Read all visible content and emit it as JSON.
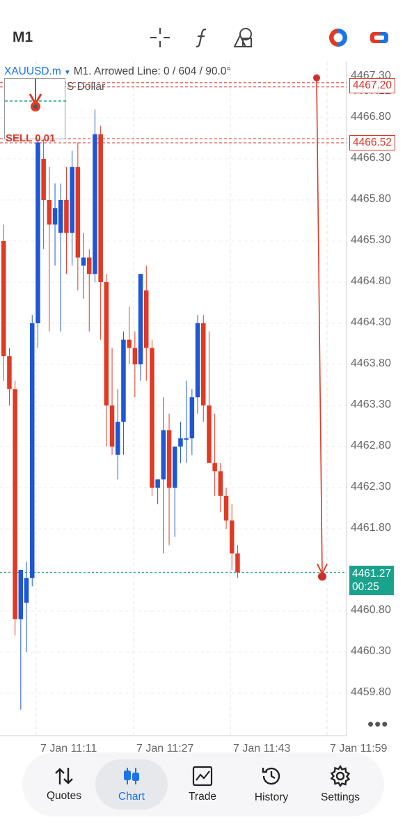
{
  "toolbar": {
    "timeframe": "M1",
    "icons": [
      "crosshair-icon",
      "function-icon",
      "objects-icon",
      "one-click-trading-icon",
      "trade-toggle-icon"
    ]
  },
  "chart_header": {
    "symbol": "XAUUSD.m",
    "info": "M1. Arrowed Line: 0 / 604 / 90.0°",
    "sub": "S Dollar"
  },
  "price_badges": {
    "sell_1": "4467.20",
    "sell_2": "4466.52",
    "current_price": "4461.27",
    "countdown": "00:25"
  },
  "sell_labels": [
    "SELL 0.01",
    "SELL 0.01"
  ],
  "chart_data": {
    "type": "candlestick",
    "y_ticks": [
      "4467.30",
      "4467.12",
      "4466.80",
      "4466.30",
      "4465.80",
      "4465.30",
      "4464.80",
      "4464.30",
      "4463.80",
      "4463.30",
      "4462.80",
      "4462.30",
      "4461.80",
      "4460.80",
      "4460.30",
      "4459.80"
    ],
    "x_ticks": [
      "7 Jan 11:11",
      "7 Jan 11:27",
      "7 Jan 11:43",
      "7 Jan 11:59"
    ],
    "current_price": 4461.27,
    "sell_levels": [
      4467.2,
      4466.52
    ],
    "candles": [
      {
        "o": 4465.3,
        "h": 4465.5,
        "l": 4463.6,
        "c": 4463.9
      },
      {
        "o": 4463.9,
        "h": 4464.0,
        "l": 4463.3,
        "c": 4463.5
      },
      {
        "o": 4463.5,
        "h": 4463.6,
        "l": 4460.5,
        "c": 4460.7
      },
      {
        "o": 4460.7,
        "h": 4461.3,
        "l": 4459.6,
        "c": 4461.3
      },
      {
        "o": 4460.9,
        "h": 4461.4,
        "l": 4460.3,
        "c": 4461.2
      },
      {
        "o": 4461.2,
        "h": 4464.4,
        "l": 4461.1,
        "c": 4464.3
      },
      {
        "o": 4464.3,
        "h": 4466.7,
        "l": 4464.0,
        "c": 4466.5
      },
      {
        "o": 4466.3,
        "h": 4466.9,
        "l": 4465.2,
        "c": 4465.8
      },
      {
        "o": 4465.8,
        "h": 4466.2,
        "l": 4464.2,
        "c": 4465.5
      },
      {
        "o": 4465.5,
        "h": 4466.0,
        "l": 4465.0,
        "c": 4465.7
      },
      {
        "o": 4465.4,
        "h": 4466.0,
        "l": 4464.2,
        "c": 4465.8
      },
      {
        "o": 4465.8,
        "h": 4466.2,
        "l": 4464.9,
        "c": 4465.4
      },
      {
        "o": 4465.4,
        "h": 4466.4,
        "l": 4465.0,
        "c": 4466.2
      },
      {
        "o": 4466.2,
        "h": 4466.5,
        "l": 4464.7,
        "c": 4465.1
      },
      {
        "o": 4465.0,
        "h": 4465.4,
        "l": 4464.6,
        "c": 4465.1
      },
      {
        "o": 4465.1,
        "h": 4465.2,
        "l": 4464.2,
        "c": 4464.9
      },
      {
        "o": 4464.9,
        "h": 4466.9,
        "l": 4464.8,
        "c": 4466.6
      },
      {
        "o": 4466.6,
        "h": 4466.7,
        "l": 4464.1,
        "c": 4464.8
      },
      {
        "o": 4464.8,
        "h": 4464.9,
        "l": 4462.8,
        "c": 4463.3
      },
      {
        "o": 4463.3,
        "h": 4464.0,
        "l": 4462.7,
        "c": 4462.8
      },
      {
        "o": 4462.7,
        "h": 4463.5,
        "l": 4462.4,
        "c": 4463.1
      },
      {
        "o": 4463.1,
        "h": 4464.2,
        "l": 4462.7,
        "c": 4464.1
      },
      {
        "o": 4464.1,
        "h": 4464.5,
        "l": 4463.8,
        "c": 4464.0
      },
      {
        "o": 4464.0,
        "h": 4464.2,
        "l": 4463.4,
        "c": 4463.8
      },
      {
        "o": 4463.8,
        "h": 4464.9,
        "l": 4463.6,
        "c": 4464.9
      },
      {
        "o": 4464.7,
        "h": 4465.0,
        "l": 4463.6,
        "c": 4464.0
      },
      {
        "o": 4464.0,
        "h": 4464.1,
        "l": 4462.2,
        "c": 4462.3
      },
      {
        "o": 4462.3,
        "h": 4462.4,
        "l": 4462.1,
        "c": 4462.4
      },
      {
        "o": 4462.4,
        "h": 4463.4,
        "l": 4461.5,
        "c": 4463.0
      },
      {
        "o": 4463.0,
        "h": 4463.2,
        "l": 4461.6,
        "c": 4462.3
      },
      {
        "o": 4462.3,
        "h": 4462.8,
        "l": 4461.7,
        "c": 4462.8
      },
      {
        "o": 4462.8,
        "h": 4463.1,
        "l": 4462.6,
        "c": 4462.9
      },
      {
        "o": 4462.9,
        "h": 4463.6,
        "l": 4462.6,
        "c": 4462.9
      },
      {
        "o": 4462.9,
        "h": 4463.5,
        "l": 4462.7,
        "c": 4463.4
      },
      {
        "o": 4463.4,
        "h": 4464.4,
        "l": 4463.2,
        "c": 4464.3
      },
      {
        "o": 4464.3,
        "h": 4464.4,
        "l": 4463.1,
        "c": 4463.3
      },
      {
        "o": 4463.3,
        "h": 4464.2,
        "l": 4462.6,
        "c": 4462.6
      },
      {
        "o": 4462.6,
        "h": 4463.2,
        "l": 4462.2,
        "c": 4462.5
      },
      {
        "o": 4462.5,
        "h": 4462.6,
        "l": 4462.0,
        "c": 4462.2
      },
      {
        "o": 4462.2,
        "h": 4462.3,
        "l": 4461.8,
        "c": 4461.9
      },
      {
        "o": 4461.9,
        "h": 4462.1,
        "l": 4461.3,
        "c": 4461.5
      },
      {
        "o": 4461.5,
        "h": 4461.6,
        "l": 4461.2,
        "c": 4461.27
      }
    ]
  },
  "bottom_nav": {
    "items": [
      {
        "label": "Quotes",
        "icon": "quotes-icon"
      },
      {
        "label": "Chart",
        "icon": "chart-icon"
      },
      {
        "label": "Trade",
        "icon": "trade-icon"
      },
      {
        "label": "History",
        "icon": "history-icon"
      },
      {
        "label": "Settings",
        "icon": "settings-icon"
      }
    ],
    "active_color": "#1a74e8"
  },
  "colors": {
    "bull": "#1f56d6",
    "bear": "#e03a25",
    "sell_line": "#d9352a",
    "current_badge": "#1aa28c"
  }
}
